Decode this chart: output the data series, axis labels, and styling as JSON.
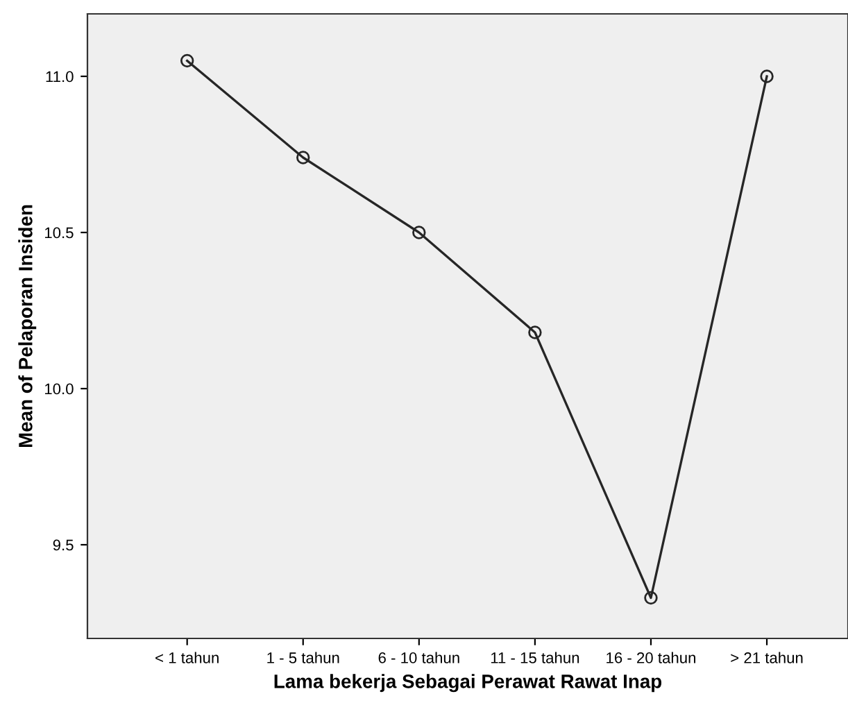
{
  "chart_data": {
    "type": "line",
    "xlabel": "Lama bekerja Sebagai Perawat Rawat Inap",
    "ylabel": "Mean of Pelaporan Insiden",
    "categories": [
      "< 1 tahun",
      "1 - 5 tahun",
      "6 - 10 tahun",
      "11 - 15 tahun",
      "16 - 20 tahun",
      "> 21 tahun"
    ],
    "series": [
      {
        "color": "#262626",
        "values": [
          11.05,
          10.74,
          10.5,
          10.18,
          9.33,
          11.0
        ]
      }
    ],
    "ylim": [
      9.2,
      11.2
    ],
    "yticks": [
      {
        "value": 9.5,
        "label": "9.5"
      },
      {
        "value": 10.0,
        "label": "10.0"
      },
      {
        "value": 10.5,
        "label": "10.5"
      },
      {
        "value": 11.0,
        "label": "11.0"
      }
    ],
    "marker": "circle",
    "line_style": "solid",
    "grid": false,
    "legend": false
  }
}
